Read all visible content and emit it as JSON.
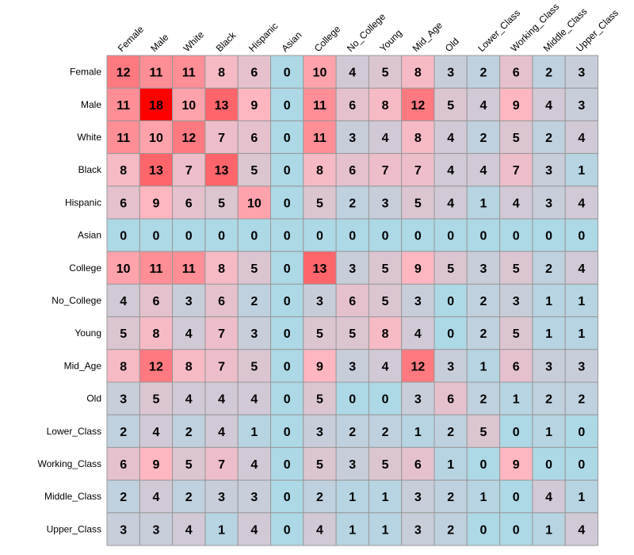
{
  "chart_data": {
    "type": "heatmap",
    "title": "",
    "xlabel": "",
    "ylabel": "",
    "columns": [
      "Female",
      "Male",
      "White",
      "Black",
      "Hispanic",
      "Asian",
      "College",
      "No_College",
      "Young",
      "Mid_Age",
      "Old",
      "Lower_Class",
      "Working_Class",
      "Middle_Class",
      "Upper_Class"
    ],
    "rows": [
      "Female",
      "Male",
      "White",
      "Black",
      "Hispanic",
      "Asian",
      "College",
      "No_College",
      "Young",
      "Mid_Age",
      "Old",
      "Lower_Class",
      "Working_Class",
      "Middle_Class",
      "Upper_Class"
    ],
    "values": [
      [
        12,
        11,
        11,
        8,
        6,
        0,
        10,
        4,
        5,
        8,
        3,
        2,
        6,
        2,
        3
      ],
      [
        11,
        18,
        10,
        13,
        9,
        0,
        11,
        6,
        8,
        12,
        5,
        4,
        9,
        4,
        3
      ],
      [
        11,
        10,
        12,
        7,
        6,
        0,
        11,
        3,
        4,
        8,
        4,
        2,
        5,
        2,
        4
      ],
      [
        8,
        13,
        7,
        13,
        5,
        0,
        8,
        6,
        7,
        7,
        4,
        4,
        7,
        3,
        1
      ],
      [
        6,
        9,
        6,
        5,
        10,
        0,
        5,
        2,
        3,
        5,
        4,
        1,
        4,
        3,
        4
      ],
      [
        0,
        0,
        0,
        0,
        0,
        0,
        0,
        0,
        0,
        0,
        0,
        0,
        0,
        0,
        0
      ],
      [
        10,
        11,
        11,
        8,
        5,
        0,
        13,
        3,
        5,
        9,
        5,
        3,
        5,
        2,
        4
      ],
      [
        4,
        6,
        3,
        6,
        2,
        0,
        3,
        6,
        5,
        3,
        0,
        2,
        3,
        1,
        1
      ],
      [
        5,
        8,
        4,
        7,
        3,
        0,
        5,
        5,
        8,
        4,
        0,
        2,
        5,
        1,
        1
      ],
      [
        8,
        12,
        8,
        7,
        5,
        0,
        9,
        3,
        4,
        12,
        3,
        1,
        6,
        3,
        3
      ],
      [
        3,
        5,
        4,
        4,
        4,
        0,
        5,
        0,
        0,
        3,
        6,
        2,
        1,
        2,
        2
      ],
      [
        2,
        4,
        2,
        4,
        1,
        0,
        3,
        2,
        2,
        1,
        2,
        5,
        0,
        1,
        0
      ],
      [
        6,
        9,
        5,
        7,
        4,
        0,
        5,
        3,
        5,
        6,
        1,
        0,
        9,
        0,
        0
      ],
      [
        2,
        4,
        2,
        3,
        3,
        0,
        2,
        1,
        1,
        3,
        2,
        1,
        0,
        4,
        1
      ],
      [
        3,
        3,
        4,
        1,
        4,
        0,
        4,
        1,
        1,
        3,
        2,
        0,
        0,
        1,
        4
      ]
    ],
    "color_scale": {
      "low": "#add8e6",
      "mid": "#ffb6c1",
      "high": "#ff0000",
      "value_range": [
        0,
        18
      ]
    },
    "grid_color": "#999999",
    "grid": true,
    "legend": "none"
  }
}
